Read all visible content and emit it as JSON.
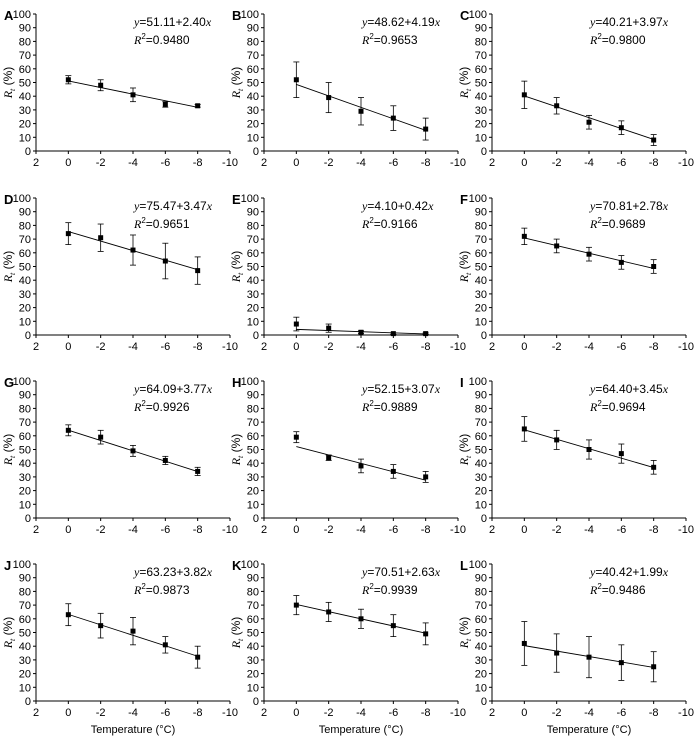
{
  "figure": {
    "x_axis_label": "Temperature (°C)",
    "y_axis_label_main": "R",
    "y_axis_label_sub": "t",
    "y_axis_label_unit": " (%)",
    "r2_prefix": "R",
    "r2_sup": "2",
    "colors": {
      "axis": "#000000",
      "marker": "#000000",
      "background": "#ffffff"
    }
  },
  "chart_data": [
    {
      "label": "A",
      "type": "scatter",
      "x": [
        0,
        -2,
        -4,
        -6,
        -8
      ],
      "y": [
        52,
        48,
        41,
        34,
        33
      ],
      "err": [
        3,
        4,
        5,
        2,
        1
      ],
      "fit": {
        "intercept": 51.11,
        "slope": 2.4
      },
      "equation_prefix": "y",
      "equation_rest": "=51.11+2.40",
      "equation_var": "x",
      "r2_value": "=0.9480",
      "xlim": [
        2,
        -10
      ],
      "ylim": [
        0,
        100
      ],
      "xticks": [
        "2",
        "0",
        "-2",
        "-4",
        "-6",
        "-8",
        "-10"
      ],
      "yticks": [
        "0",
        "10",
        "20",
        "30",
        "40",
        "50",
        "60",
        "70",
        "80",
        "90",
        "100"
      ]
    },
    {
      "label": "B",
      "type": "scatter",
      "x": [
        0,
        -2,
        -4,
        -6,
        -8
      ],
      "y": [
        52,
        39,
        29,
        24,
        16
      ],
      "err": [
        13,
        11,
        10,
        9,
        8
      ],
      "fit": {
        "intercept": 48.62,
        "slope": 4.19
      },
      "equation_prefix": "y",
      "equation_rest": "=48.62+4.19",
      "equation_var": "x",
      "r2_value": "=0.9653",
      "xlim": [
        2,
        -10
      ],
      "ylim": [
        0,
        100
      ],
      "xticks": [
        "2",
        "0",
        "-2",
        "-4",
        "-6",
        "-8",
        "-10"
      ],
      "yticks": [
        "0",
        "10",
        "20",
        "30",
        "40",
        "50",
        "60",
        "70",
        "80",
        "90",
        "100"
      ]
    },
    {
      "label": "C",
      "type": "scatter",
      "x": [
        0,
        -2,
        -4,
        -6,
        -8
      ],
      "y": [
        41,
        33,
        21,
        17,
        8
      ],
      "err": [
        10,
        6,
        5,
        5,
        4
      ],
      "fit": {
        "intercept": 40.21,
        "slope": 3.97
      },
      "equation_prefix": "y",
      "equation_rest": "=40.21+3.97",
      "equation_var": "x",
      "r2_value": "=0.9800",
      "xlim": [
        2,
        -10
      ],
      "ylim": [
        0,
        100
      ],
      "xticks": [
        "2",
        "0",
        "-2",
        "-4",
        "-6",
        "-8",
        "-10"
      ],
      "yticks": [
        "0",
        "10",
        "20",
        "30",
        "40",
        "50",
        "60",
        "70",
        "80",
        "90",
        "100"
      ]
    },
    {
      "label": "D",
      "type": "scatter",
      "x": [
        0,
        -2,
        -4,
        -6,
        -8
      ],
      "y": [
        74,
        71,
        62,
        54,
        47
      ],
      "err": [
        8,
        10,
        11,
        13,
        10
      ],
      "fit": {
        "intercept": 75.47,
        "slope": 3.47
      },
      "equation_prefix": "y",
      "equation_rest": "=75.47+3.47",
      "equation_var": "x",
      "r2_value": "=0.9651",
      "xlim": [
        2,
        -10
      ],
      "ylim": [
        0,
        100
      ],
      "xticks": [
        "2",
        "0",
        "-2",
        "-4",
        "-6",
        "-8",
        "-10"
      ],
      "yticks": [
        "0",
        "10",
        "20",
        "30",
        "40",
        "50",
        "60",
        "70",
        "80",
        "90",
        "100"
      ]
    },
    {
      "label": "E",
      "type": "scatter",
      "x": [
        0,
        -2,
        -4,
        -6,
        -8
      ],
      "y": [
        8,
        5,
        2,
        1,
        1
      ],
      "err": [
        5,
        3,
        1,
        0.5,
        0.5
      ],
      "fit": {
        "intercept": 4.1,
        "slope": 0.42
      },
      "equation_prefix": "y",
      "equation_rest": "=4.10+0.42",
      "equation_var": "x",
      "r2_value": "=0.9166",
      "xlim": [
        2,
        -10
      ],
      "ylim": [
        0,
        100
      ],
      "xticks": [
        "2",
        "0",
        "-2",
        "-4",
        "-6",
        "-8",
        "-10"
      ],
      "yticks": [
        "0",
        "10",
        "20",
        "30",
        "40",
        "50",
        "60",
        "70",
        "80",
        "90",
        "100"
      ]
    },
    {
      "label": "F",
      "type": "scatter",
      "x": [
        0,
        -2,
        -4,
        -6,
        -8
      ],
      "y": [
        72,
        65,
        59,
        53,
        50
      ],
      "err": [
        6,
        5,
        5,
        5,
        5
      ],
      "fit": {
        "intercept": 70.81,
        "slope": 2.78
      },
      "equation_prefix": "y",
      "equation_rest": "=70.81+2.78",
      "equation_var": "x",
      "r2_value": "=0.9689",
      "xlim": [
        2,
        -10
      ],
      "ylim": [
        0,
        100
      ],
      "xticks": [
        "2",
        "0",
        "-2",
        "-4",
        "-6",
        "-8",
        "-10"
      ],
      "yticks": [
        "0",
        "10",
        "20",
        "30",
        "40",
        "50",
        "60",
        "70",
        "80",
        "90",
        "100"
      ]
    },
    {
      "label": "G",
      "type": "scatter",
      "x": [
        0,
        -2,
        -4,
        -6,
        -8
      ],
      "y": [
        64,
        59,
        49,
        42,
        34
      ],
      "err": [
        4,
        5,
        4,
        3,
        3
      ],
      "fit": {
        "intercept": 64.09,
        "slope": 3.77
      },
      "equation_prefix": "y",
      "equation_rest": "=64.09+3.77",
      "equation_var": "x",
      "r2_value": "=0.9926",
      "xlim": [
        2,
        -10
      ],
      "ylim": [
        0,
        100
      ],
      "xticks": [
        "2",
        "0",
        "-2",
        "-4",
        "-6",
        "-8",
        "-10"
      ],
      "yticks": [
        "0",
        "10",
        "20",
        "30",
        "40",
        "50",
        "60",
        "70",
        "80",
        "90",
        "100"
      ]
    },
    {
      "label": "H",
      "type": "scatter",
      "x": [
        0,
        -2,
        -4,
        -6,
        -8
      ],
      "y": [
        59,
        44,
        38,
        34,
        30
      ],
      "err": [
        4,
        2,
        5,
        5,
        4
      ],
      "fit": {
        "intercept": 52.15,
        "slope": 3.07
      },
      "equation_prefix": "y",
      "equation_rest": "=52.15+3.07",
      "equation_var": "x",
      "r2_value": "=0.9889",
      "xlim": [
        2,
        -10
      ],
      "ylim": [
        0,
        100
      ],
      "xticks": [
        "2",
        "0",
        "-2",
        "-4",
        "-6",
        "-8",
        "-10"
      ],
      "yticks": [
        "0",
        "10",
        "20",
        "30",
        "40",
        "50",
        "60",
        "70",
        "80",
        "90",
        "100"
      ]
    },
    {
      "label": "I",
      "type": "scatter",
      "x": [
        0,
        -2,
        -4,
        -6,
        -8
      ],
      "y": [
        65,
        57,
        50,
        47,
        37
      ],
      "err": [
        9,
        7,
        7,
        7,
        5
      ],
      "fit": {
        "intercept": 64.4,
        "slope": 3.45
      },
      "equation_prefix": "y",
      "equation_rest": "=64.40+3.45",
      "equation_var": "x",
      "r2_value": "=0.9694",
      "xlim": [
        2,
        -10
      ],
      "ylim": [
        0,
        100
      ],
      "xticks": [
        "2",
        "0",
        "-2",
        "-4",
        "-6",
        "-8",
        "-10"
      ],
      "yticks": [
        "0",
        "10",
        "20",
        "30",
        "40",
        "50",
        "60",
        "70",
        "80",
        "90",
        "100"
      ]
    },
    {
      "label": "J",
      "type": "scatter",
      "x": [
        0,
        -2,
        -4,
        -6,
        -8
      ],
      "y": [
        63,
        55,
        51,
        41,
        32
      ],
      "err": [
        8,
        9,
        10,
        6,
        8
      ],
      "fit": {
        "intercept": 63.23,
        "slope": 3.82
      },
      "equation_prefix": "y",
      "equation_rest": "=63.23+3.82",
      "equation_var": "x",
      "r2_value": "=0.9873",
      "xlim": [
        2,
        -10
      ],
      "ylim": [
        0,
        100
      ],
      "xticks": [
        "2",
        "0",
        "-2",
        "-4",
        "-6",
        "-8",
        "-10"
      ],
      "yticks": [
        "0",
        "10",
        "20",
        "30",
        "40",
        "50",
        "60",
        "70",
        "80",
        "90",
        "100"
      ]
    },
    {
      "label": "K",
      "type": "scatter",
      "x": [
        0,
        -2,
        -4,
        -6,
        -8
      ],
      "y": [
        70,
        65,
        60,
        55,
        49
      ],
      "err": [
        7,
        7,
        7,
        8,
        8
      ],
      "fit": {
        "intercept": 70.51,
        "slope": 2.63
      },
      "equation_prefix": "y",
      "equation_rest": "=70.51+2.63",
      "equation_var": "x",
      "r2_value": "=0.9939",
      "xlim": [
        2,
        -10
      ],
      "ylim": [
        0,
        100
      ],
      "xticks": [
        "2",
        "0",
        "-2",
        "-4",
        "-6",
        "-8",
        "-10"
      ],
      "yticks": [
        "0",
        "10",
        "20",
        "30",
        "40",
        "50",
        "60",
        "70",
        "80",
        "90",
        "100"
      ]
    },
    {
      "label": "L",
      "type": "scatter",
      "x": [
        0,
        -2,
        -4,
        -6,
        -8
      ],
      "y": [
        42,
        35,
        32,
        28,
        25
      ],
      "err": [
        16,
        14,
        15,
        13,
        11
      ],
      "fit": {
        "intercept": 40.42,
        "slope": 1.99
      },
      "equation_prefix": "y",
      "equation_rest": "=40.42+1.99",
      "equation_var": "x",
      "r2_value": "=0.9486",
      "xlim": [
        2,
        -10
      ],
      "ylim": [
        0,
        100
      ],
      "xticks": [
        "2",
        "0",
        "-2",
        "-4",
        "-6",
        "-8",
        "-10"
      ],
      "yticks": [
        "0",
        "10",
        "20",
        "30",
        "40",
        "50",
        "60",
        "70",
        "80",
        "90",
        "100"
      ]
    }
  ]
}
